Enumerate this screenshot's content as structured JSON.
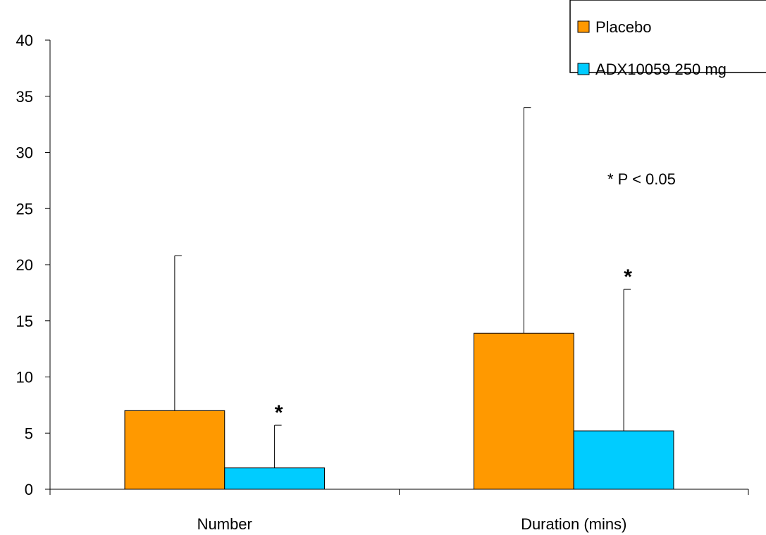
{
  "chart_data": {
    "type": "bar",
    "categories": [
      "Number",
      "Duration (mins)"
    ],
    "series": [
      {
        "name": "Placebo",
        "values": [
          7.0,
          13.9
        ],
        "error_upper": [
          20.8,
          34.0
        ],
        "color": "#FF9900"
      },
      {
        "name": "ADX10059 250 mg",
        "values": [
          1.9,
          5.2
        ],
        "error_upper": [
          5.7,
          17.8
        ],
        "color": "#00CCFF"
      }
    ],
    "significance_markers": [
      {
        "category": "Number",
        "series": "ADX10059 250 mg",
        "text": "*"
      },
      {
        "category": "Duration (mins)",
        "series": "ADX10059 250 mg",
        "text": "*"
      }
    ],
    "annotation": "* P < 0.05",
    "ylim": [
      0,
      40
    ],
    "yticks": [
      0,
      5,
      10,
      15,
      20,
      25,
      30,
      35,
      40
    ],
    "xlabel": "",
    "ylabel": "",
    "grid": false,
    "legend_position": "top-right"
  }
}
